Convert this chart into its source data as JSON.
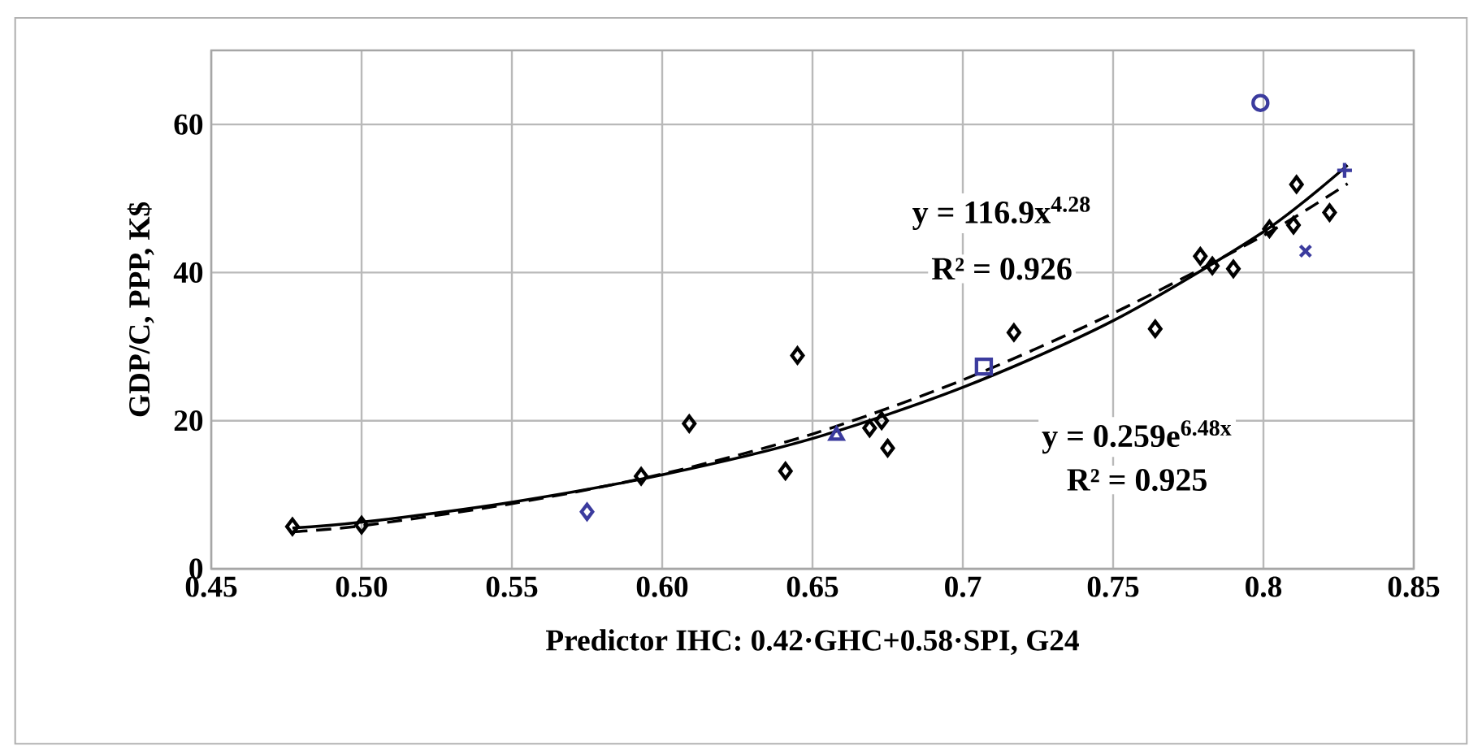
{
  "chart_data": {
    "type": "scatter",
    "xlabel": "Predictor IHC: 0.42·GHC+0.58·SPI, G24",
    "ylabel": "GDP/C, PPP, K$",
    "xlim": [
      0.45,
      0.85
    ],
    "xticks": [
      {
        "value": 0.45,
        "label": "0.45"
      },
      {
        "value": 0.5,
        "label": "0.50"
      },
      {
        "value": 0.55,
        "label": "0.55"
      },
      {
        "value": 0.6,
        "label": "0.60"
      },
      {
        "value": 0.65,
        "label": "0.65"
      },
      0.7,
      0.75,
      0.8,
      0.85
    ],
    "ylim": [
      0,
      70
    ],
    "yticks": [
      0,
      20,
      40,
      60
    ],
    "grid": true,
    "series": [
      {
        "marker": "diamond",
        "color": "#000000",
        "x": [
          0.477,
          0.5,
          0.593,
          0.609,
          0.641,
          0.645,
          0.669,
          0.673,
          0.675,
          0.717,
          0.764,
          0.779,
          0.783,
          0.79,
          0.802,
          0.81,
          0.811,
          0.822
        ],
        "values": [
          5.7,
          5.9,
          12.5,
          19.6,
          13.2,
          28.8,
          19.0,
          20.0,
          16.3,
          31.9,
          32.4,
          42.2,
          40.9,
          40.5,
          45.9,
          46.4,
          51.9,
          48.1
        ]
      },
      {
        "marker": "diamond",
        "color": "#3b3b9e",
        "x": [
          0.575
        ],
        "values": [
          7.7
        ]
      },
      {
        "marker": "triangle",
        "color": "#3b3b9e",
        "x": [
          0.658
        ],
        "values": [
          18.0
        ]
      },
      {
        "marker": "square",
        "color": "#3b3b9e",
        "x": [
          0.707
        ],
        "values": [
          27.3
        ]
      },
      {
        "marker": "circle",
        "color": "#3b3b9e",
        "x": [
          0.799
        ],
        "values": [
          62.9
        ]
      },
      {
        "marker": "cross",
        "color": "#3b3b9e",
        "x": [
          0.814
        ],
        "values": [
          42.9
        ]
      },
      {
        "marker": "plus",
        "color": "#3b3b9e",
        "x": [
          0.827
        ],
        "values": [
          53.8
        ]
      },
      {
        "type": "line",
        "line_style": "solid",
        "color": "#000000",
        "x": [
          0.477,
          0.5,
          0.55,
          0.6,
          0.65,
          0.7,
          0.75,
          0.8,
          0.828
        ],
        "values": [
          5.5,
          6.3,
          9.0,
          12.7,
          17.6,
          24.5,
          33.5,
          45.5,
          54.5
        ]
      },
      {
        "type": "line",
        "line_style": "dashed",
        "color": "#000000",
        "x": [
          0.477,
          0.5,
          0.55,
          0.6,
          0.65,
          0.7,
          0.75,
          0.8,
          0.828
        ],
        "values": [
          5.0,
          5.8,
          8.8,
          12.8,
          18.2,
          25.5,
          34.5,
          45.0,
          52.0
        ]
      }
    ],
    "annotations": [
      "y = 116.9x$^{4.28}$",
      "R² = 0.926",
      "y = 0.259e$^{6.48x}$",
      "R² = 0.925"
    ]
  }
}
